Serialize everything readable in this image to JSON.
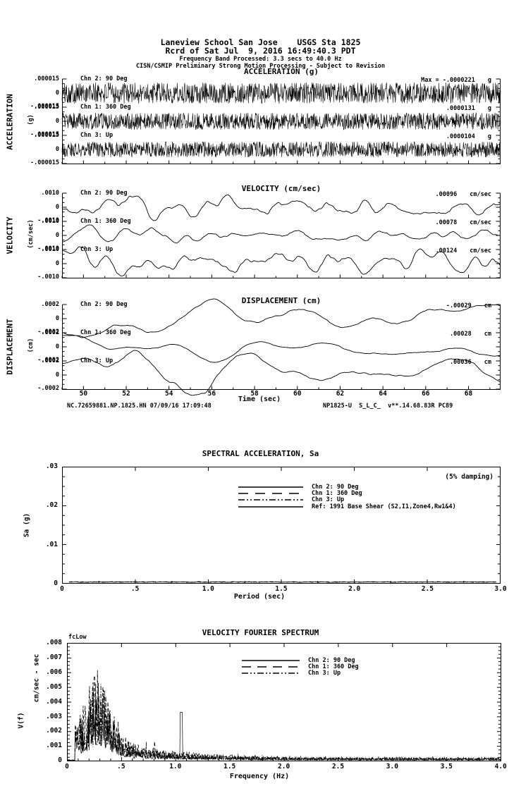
{
  "header": {
    "line1": "Laneview School San Jose    USGS Sta 1825",
    "line2": "Rcrd of Sat Jul  9, 2016 16:49:40.3 PDT",
    "line3": "Frequency Band Processed: 3.3 secs to 40.0 Hz",
    "line4": "CISN/CSMIP Preliminary Strong Motion Processing - Subject to Revision"
  },
  "sections": {
    "acceleration": {
      "title": "ACCELERATION (g)",
      "axis_label": "ACCELERATION",
      "axis_unit": "(g)",
      "tick_top": ".000015",
      "tick_mid": "0",
      "tick_bot": "-.000015",
      "channels": [
        {
          "label": "Chn 2: 90 Deg",
          "max": "Max = -.0000221",
          "unit": "g"
        },
        {
          "label": "Chn 1: 360 Deg",
          "max": ".0000131",
          "unit": "g"
        },
        {
          "label": "Chn 3: Up",
          "max": ".0000104",
          "unit": "g"
        }
      ]
    },
    "velocity": {
      "title": "VELOCITY (cm/sec)",
      "axis_label": "VELOCITY",
      "axis_unit": "(cm/sec)",
      "tick_top": ".0010",
      "tick_mid": "0",
      "tick_bot": "-.0010",
      "channels": [
        {
          "label": "Chn 2: 90 Deg",
          "max": ".00096",
          "unit": "cm/sec"
        },
        {
          "label": "Chn 1: 360 Deg",
          "max": ".00078",
          "unit": "cm/sec"
        },
        {
          "label": "Chn 3: Up",
          "max": ".00124",
          "unit": "cm/sec"
        }
      ]
    },
    "displacement": {
      "title": "DISPLACEMENT (cm)",
      "axis_label": "DISPLACEMENT",
      "axis_unit": "(cm)",
      "tick_top": ".0002",
      "tick_mid": "0",
      "tick_bot": "-.0002",
      "channels": [
        {
          "label": "Chn 2: 90 Deg",
          "max": "-.00029",
          "unit": "cm"
        },
        {
          "label": "Chn 1: 360 Deg",
          "max": ".00028",
          "unit": "cm"
        },
        {
          "label": "Chn 3: Up",
          "max": ".00036",
          "unit": "cm"
        }
      ]
    }
  },
  "time_axis": {
    "label": "Time (sec)",
    "tick_labels": [
      "50",
      "52",
      "54",
      "56",
      "58",
      "60",
      "62",
      "64",
      "66",
      "68"
    ],
    "range": [
      49,
      69.5
    ]
  },
  "footer": {
    "left": "NC.72659881.NP.1825.HN 07/09/16 17:09:48",
    "right": "NP1825-U  S_L_C_  v**.14.68.83R PC89"
  },
  "sa_chart": {
    "title": "SPECTRAL ACCELERATION, Sa",
    "ylabel": "Sa (g)",
    "xlabel": "Period (sec)",
    "damping_note": "(5% damping)",
    "y_ticks": [
      ".03",
      ".02",
      ".01",
      "0"
    ],
    "x_ticks": [
      "0",
      ".5",
      "1.0",
      "1.5",
      "2.0",
      "2.5",
      "3.0"
    ],
    "legend": [
      {
        "label": "Chn 2: 90 Deg"
      },
      {
        "label": "Chn 1: 360 Deg"
      },
      {
        "label": "Chn 3: Up"
      },
      {
        "label": "Ref: 1991 Base Shear (S2,I1,Zone4,Rw1&4)"
      }
    ]
  },
  "fourier_chart": {
    "title": "VELOCITY FOURIER SPECTRUM",
    "corner_note": "fcLow",
    "ylabel_units": "cm/sec - sec",
    "ylabel_var": "V(f)",
    "xlabel": "Frequency (Hz)",
    "y_ticks": [
      ".008",
      ".007",
      ".006",
      ".005",
      ".004",
      ".003",
      ".002",
      ".001",
      "0"
    ],
    "x_ticks": [
      "0",
      ".5",
      "1.0",
      "1.5",
      "2.0",
      "2.5",
      "3.0",
      "3.5",
      "4.0"
    ],
    "legend": [
      {
        "label": "Chn 2: 90 Deg"
      },
      {
        "label": "Chn 1: 360 Deg"
      },
      {
        "label": "Chn 3: Up"
      }
    ]
  },
  "chart_data": [
    {
      "type": "line",
      "title": "ACCELERATION (g)",
      "xlabel": "Time (sec)",
      "x_range": [
        49,
        69.5
      ],
      "ylim_per_trace": [
        -1.5e-05,
        1.5e-05
      ],
      "series": [
        {
          "name": "Chn 2: 90 Deg",
          "peak_value_g": -2.21e-05
        },
        {
          "name": "Chn 1: 360 Deg",
          "peak_value_g": 1.31e-05
        },
        {
          "name": "Chn 3: Up",
          "peak_value_g": 1.04e-05
        }
      ],
      "note": "three stacked broadband noise-like acceleration traces"
    },
    {
      "type": "line",
      "title": "VELOCITY (cm/sec)",
      "xlabel": "Time (sec)",
      "x_range": [
        49,
        69.5
      ],
      "ylim_per_trace": [
        -0.001,
        0.001
      ],
      "series": [
        {
          "name": "Chn 2: 90 Deg",
          "peak_value_cm_s": 0.00096
        },
        {
          "name": "Chn 1: 360 Deg",
          "peak_value_cm_s": 0.00078
        },
        {
          "name": "Chn 3: Up",
          "peak_value_cm_s": 0.00124
        }
      ],
      "note": "smoother oscillatory velocity traces"
    },
    {
      "type": "line",
      "title": "DISPLACEMENT (cm)",
      "xlabel": "Time (sec)",
      "x_range": [
        49,
        69.5
      ],
      "ylim_per_trace": [
        -0.0002,
        0.0002
      ],
      "series": [
        {
          "name": "Chn 2: 90 Deg",
          "peak_value_cm": -0.00029
        },
        {
          "name": "Chn 1: 360 Deg",
          "peak_value_cm": 0.00028
        },
        {
          "name": "Chn 3: Up",
          "peak_value_cm": 0.00036
        }
      ],
      "note": "long-period smooth displacement traces, Chn 3 exceeds strip bounds"
    },
    {
      "type": "line",
      "title": "SPECTRAL ACCELERATION, Sa",
      "xlabel": "Period (sec)",
      "ylabel": "Sa (g)",
      "xlim": [
        0,
        3.0
      ],
      "ylim": [
        0,
        0.03
      ],
      "damping": "(5% damping)",
      "series": [
        {
          "name": "Chn 2: 90 Deg",
          "values": "~0 over 0-3 sec (flat at axis)"
        },
        {
          "name": "Chn 1: 360 Deg",
          "values": "~0 over 0-3 sec (flat at axis)"
        },
        {
          "name": "Chn 3: Up",
          "values": "~0 over 0-3 sec (flat at axis)"
        },
        {
          "name": "Ref: 1991 Base Shear (S2,I1,Zone4,Rw1&4)",
          "values": "off-scale, not visible"
        }
      ]
    },
    {
      "type": "line",
      "title": "VELOCITY FOURIER SPECTRUM",
      "xlabel": "Frequency (Hz)",
      "ylabel": "V(f) cm/sec - sec",
      "xlim": [
        0,
        4.0
      ],
      "ylim": [
        0,
        0.008
      ],
      "series": [
        {
          "name": "Chn 2: 90 Deg",
          "peak": {
            "f_hz": 0.3,
            "v": 0.005
          },
          "secondary_peak": {
            "f_hz": 1.05,
            "v": 0.0033
          }
        },
        {
          "name": "Chn 1: 360 Deg",
          "peak": {
            "f_hz": 0.27,
            "v": 0.0068
          }
        },
        {
          "name": "Chn 3: Up",
          "peak": {
            "f_hz": 0.33,
            "v": 0.0055
          }
        }
      ],
      "behavior": "spiky spectra, energy concentrated 0.15-1.5 Hz, low tail to 4 Hz"
    }
  ],
  "render": {
    "time_series": {
      "acceleration": [
        {
          "seed": 101,
          "n": 1300,
          "smooth": 0,
          "passes": 0,
          "amp": 15,
          "lw": 0.6
        },
        {
          "seed": 102,
          "n": 1300,
          "smooth": 0,
          "passes": 0,
          "amp": 12,
          "lw": 0.6
        },
        {
          "seed": 103,
          "n": 1300,
          "smooth": 0,
          "passes": 0,
          "amp": 11,
          "lw": 0.6
        }
      ],
      "velocity": [
        {
          "seed": 201,
          "n": 1000,
          "smooth": 12,
          "passes": 2,
          "amp": 19,
          "lw": 0.9
        },
        {
          "seed": 202,
          "n": 1000,
          "smooth": 12,
          "passes": 2,
          "amp": 15,
          "lw": 0.9
        },
        {
          "seed": 203,
          "n": 1000,
          "smooth": 12,
          "passes": 2,
          "amp": 24,
          "lw": 0.9
        }
      ],
      "displacement": [
        {
          "seed": 301,
          "n": 1000,
          "smooth": 35,
          "passes": 2,
          "amp": 28,
          "lw": 0.9
        },
        {
          "seed": 302,
          "n": 1000,
          "smooth": 35,
          "passes": 2,
          "amp": 22,
          "lw": 0.9
        },
        {
          "seed": 303,
          "n": 1000,
          "smooth": 35,
          "passes": 2,
          "amp": 35,
          "lw": 0.9
        }
      ]
    },
    "spectra": [
      {
        "seed": 401,
        "peak": 0.005,
        "dash": "",
        "lw": 0.7,
        "spike1": true
      },
      {
        "seed": 402,
        "peak": 0.0068,
        "dash": "5,3",
        "lw": 0.8,
        "spike1": false
      },
      {
        "seed": 403,
        "peak": 0.0056,
        "dash": "6,2,1.5,2",
        "lw": 0.8,
        "spike1": false
      }
    ],
    "sa_traces": [
      {
        "dash": ""
      },
      {
        "dash": "5,3"
      },
      {
        "dash": "6,2,1.5,2"
      }
    ]
  }
}
